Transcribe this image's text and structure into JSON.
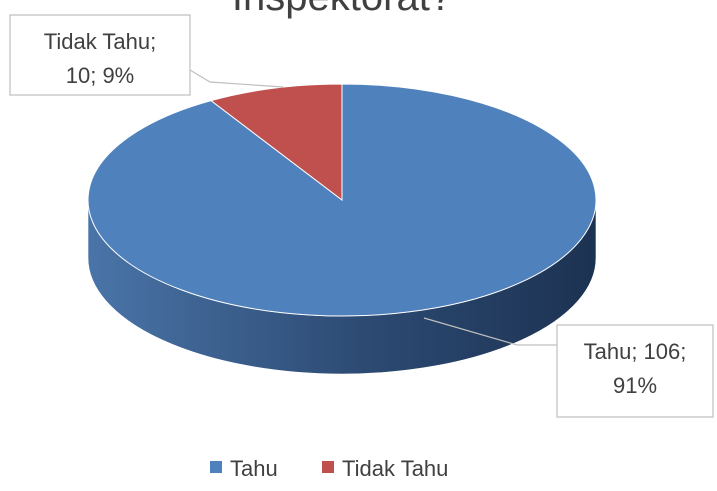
{
  "chart_data": {
    "type": "pie3d",
    "title": "Inspektorat?",
    "categories": [
      "Tahu",
      "Tidak Tahu"
    ],
    "values": [
      106,
      10
    ],
    "value_labels": [
      [
        "Tahu; 106;",
        "91%"
      ],
      [
        "Tidak Tahu;",
        "10; 9%"
      ]
    ],
    "colors": [
      "#4f81bd",
      "#c0504d"
    ],
    "legend": "bottom"
  }
}
